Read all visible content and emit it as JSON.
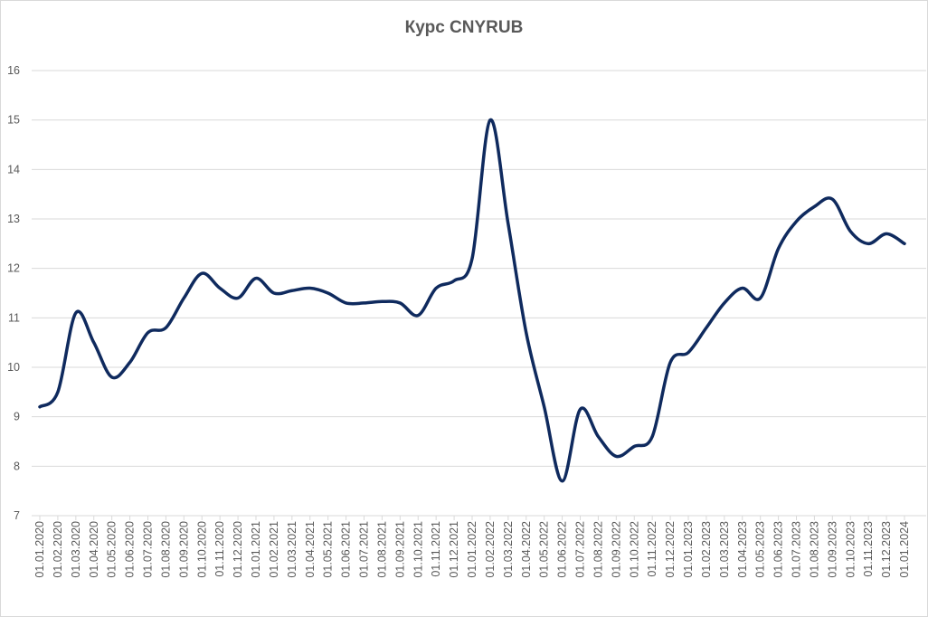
{
  "chart_data": {
    "type": "line",
    "title": "Курс CNYRUB",
    "xlabel": "",
    "ylabel": "",
    "ylim": [
      7,
      16
    ],
    "yticks": [
      7,
      8,
      9,
      10,
      11,
      12,
      13,
      14,
      15,
      16
    ],
    "grid": true,
    "legend": "none",
    "colors": {
      "line": "#0f2a5e",
      "grid": "#d9d9d9",
      "text": "#595959"
    },
    "categories": [
      "01.01.2020",
      "01.02.2020",
      "01.03.2020",
      "01.04.2020",
      "01.05.2020",
      "01.06.2020",
      "01.07.2020",
      "01.08.2020",
      "01.09.2020",
      "01.10.2020",
      "01.11.2020",
      "01.12.2020",
      "01.01.2021",
      "01.02.2021",
      "01.03.2021",
      "01.04.2021",
      "01.05.2021",
      "01.06.2021",
      "01.07.2021",
      "01.08.2021",
      "01.09.2021",
      "01.10.2021",
      "01.11.2021",
      "01.12.2021",
      "01.01.2022",
      "01.02.2022",
      "01.03.2022",
      "01.04.2022",
      "01.05.2022",
      "01.06.2022",
      "01.07.2022",
      "01.08.2022",
      "01.09.2022",
      "01.10.2022",
      "01.11.2022",
      "01.12.2022",
      "01.01.2023",
      "01.02.2023",
      "01.03.2023",
      "01.04.2023",
      "01.05.2023",
      "01.06.2023",
      "01.07.2023",
      "01.08.2023",
      "01.09.2023",
      "01.10.2023",
      "01.11.2023",
      "01.12.2023",
      "01.01.2024"
    ],
    "series": [
      {
        "values": [
          9.2,
          9.5,
          11.1,
          10.5,
          9.8,
          10.1,
          10.7,
          10.8,
          11.4,
          11.9,
          11.6,
          11.4,
          11.8,
          11.5,
          11.55,
          11.6,
          11.5,
          11.3,
          11.3,
          11.33,
          11.3,
          11.05,
          11.6,
          11.75,
          12.2,
          15.0,
          12.9,
          10.7,
          9.2,
          7.7,
          9.15,
          8.6,
          8.2,
          8.4,
          8.6,
          10.1,
          10.3,
          10.8,
          11.3,
          11.6,
          11.4,
          12.4,
          12.95,
          13.25,
          13.4,
          12.75,
          12.5,
          12.7,
          12.5
        ]
      }
    ]
  }
}
